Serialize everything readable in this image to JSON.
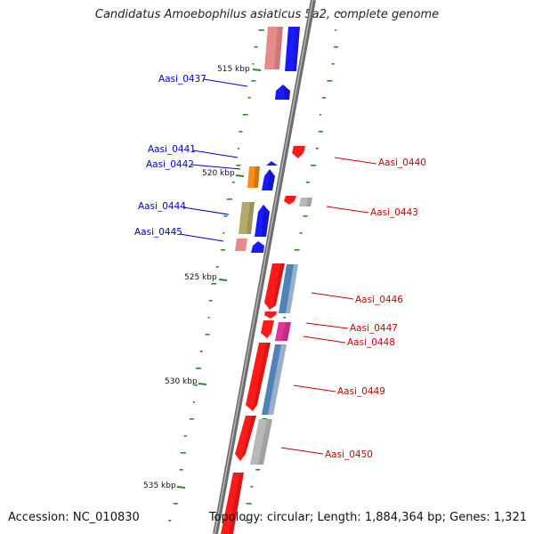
{
  "title": "Candidatus Amoebophilus asiaticus 5a2, complete genome",
  "footer": {
    "accession_label": "Accession:",
    "accession": "NC_010830",
    "topology_label": "Topology:",
    "topology": "circular;",
    "length_label": "Length:",
    "length": "1,884,364 bp;",
    "genes_label": "Genes:",
    "genes": "1,321"
  },
  "colors": {
    "backbone": "#777777",
    "forward_gene": "#1a1aff",
    "reverse_gene": "#ff1a1a",
    "pink_gene": "#e88a8a",
    "gray_gene": "#b8b8b8",
    "steel_gene": "#4f83b8",
    "orange_gene": "#ff8c1a",
    "olive_gene": "#b5aa6a",
    "magenta_gene": "#e0359a",
    "gc_dot": "#2a8a2a",
    "left_label": "#0000cc",
    "right_label": "#cc0000"
  },
  "ticks": [
    {
      "label": "515 kbp"
    },
    {
      "label": "520 kbp"
    },
    {
      "label": "525 kbp"
    },
    {
      "label": "530 kbp"
    },
    {
      "label": "535 kbp"
    }
  ],
  "left_labels": [
    {
      "text": "Aasi_0437"
    },
    {
      "text": "Aasi_0441"
    },
    {
      "text": "Aasi_0442"
    },
    {
      "text": "Aasi_0444"
    },
    {
      "text": "Aasi_0445"
    }
  ],
  "right_labels": [
    {
      "text": "Aasi_0440"
    },
    {
      "text": "Aasi_0443"
    },
    {
      "text": "Aasi_0446"
    },
    {
      "text": "Aasi_0447"
    },
    {
      "text": "Aasi_0448"
    },
    {
      "text": "Aasi_0449"
    },
    {
      "text": "Aasi_0450"
    }
  ]
}
